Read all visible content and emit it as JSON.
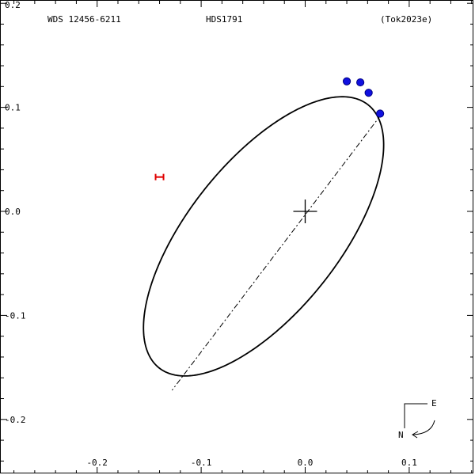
{
  "header": {
    "wds_id": "WDS 12456-6211",
    "discoverer": "HDS1791",
    "reference": "(Tok2023e)"
  },
  "compass": {
    "east": "E",
    "north": "N"
  },
  "colors": {
    "orbit": "#000000",
    "observation": "#1010e0",
    "observation_outline": "#000080",
    "discrepant": "#e00000",
    "axes": "#000000"
  },
  "chart_data": {
    "type": "scatter",
    "title": "",
    "xlabel": "",
    "ylabel": "",
    "xlim": [
      0.147,
      -0.26
    ],
    "ylim": [
      -0.25,
      0.2
    ],
    "x_ticks": [
      {
        "value": 0.1,
        "label": "0.1"
      },
      {
        "value": 0.0,
        "label": "0.0"
      },
      {
        "value": -0.1,
        "label": "-0.1"
      },
      {
        "value": -0.2,
        "label": "-0.2"
      }
    ],
    "y_ticks": [
      {
        "value": 0.2,
        "label": "0.2"
      },
      {
        "value": 0.1,
        "label": "0.1"
      },
      {
        "value": 0.0,
        "label": "0.0"
      },
      {
        "value": -0.1,
        "label": "-0.1"
      },
      {
        "value": -0.2,
        "label": "-0.2"
      }
    ],
    "primary": {
      "x": 0.0,
      "y": 0.0
    },
    "orbit_ellipse": {
      "center": {
        "x": -0.04,
        "y": -0.024
      },
      "semi_major": 0.1615,
      "semi_minor": 0.0725,
      "major_axis_angle_deg": 51.5
    },
    "line_of_nodes": [
      {
        "x": 0.073,
        "y": 0.093
      },
      {
        "x": -0.128,
        "y": -0.172
      }
    ],
    "observations": [
      {
        "x": 0.04,
        "y": 0.125
      },
      {
        "x": 0.053,
        "y": 0.124
      },
      {
        "x": 0.061,
        "y": 0.114
      },
      {
        "x": 0.072,
        "y": 0.094
      }
    ],
    "discrepant": [
      {
        "x": -0.14,
        "y": 0.033
      }
    ]
  }
}
